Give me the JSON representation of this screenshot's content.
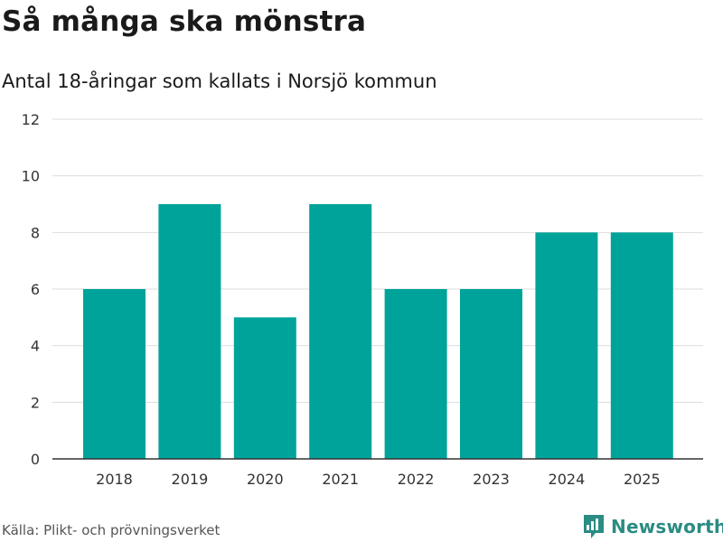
{
  "title": "Så många ska mönstra",
  "subtitle": "Antal 18-åringar som kallats i Norsjö kommun",
  "source": "Källa: Plikt- och prövningsverket",
  "brand": {
    "name": "Newsworthy",
    "icon": "newsworthy-logo-icon",
    "color": "#2a8c83"
  },
  "colors": {
    "bar": "#00a39a",
    "grid": "#dddddd",
    "axis": "#333333"
  },
  "chart_data": {
    "type": "bar",
    "categories": [
      "2018",
      "2019",
      "2020",
      "2021",
      "2022",
      "2023",
      "2024",
      "2025"
    ],
    "values": [
      6,
      9,
      5,
      9,
      6,
      6,
      8,
      8
    ],
    "title": "Så många ska mönstra",
    "xlabel": "",
    "ylabel": "",
    "ylim": [
      0,
      12
    ],
    "yticks": [
      0,
      2,
      4,
      6,
      8,
      10,
      12
    ],
    "grid": true
  }
}
